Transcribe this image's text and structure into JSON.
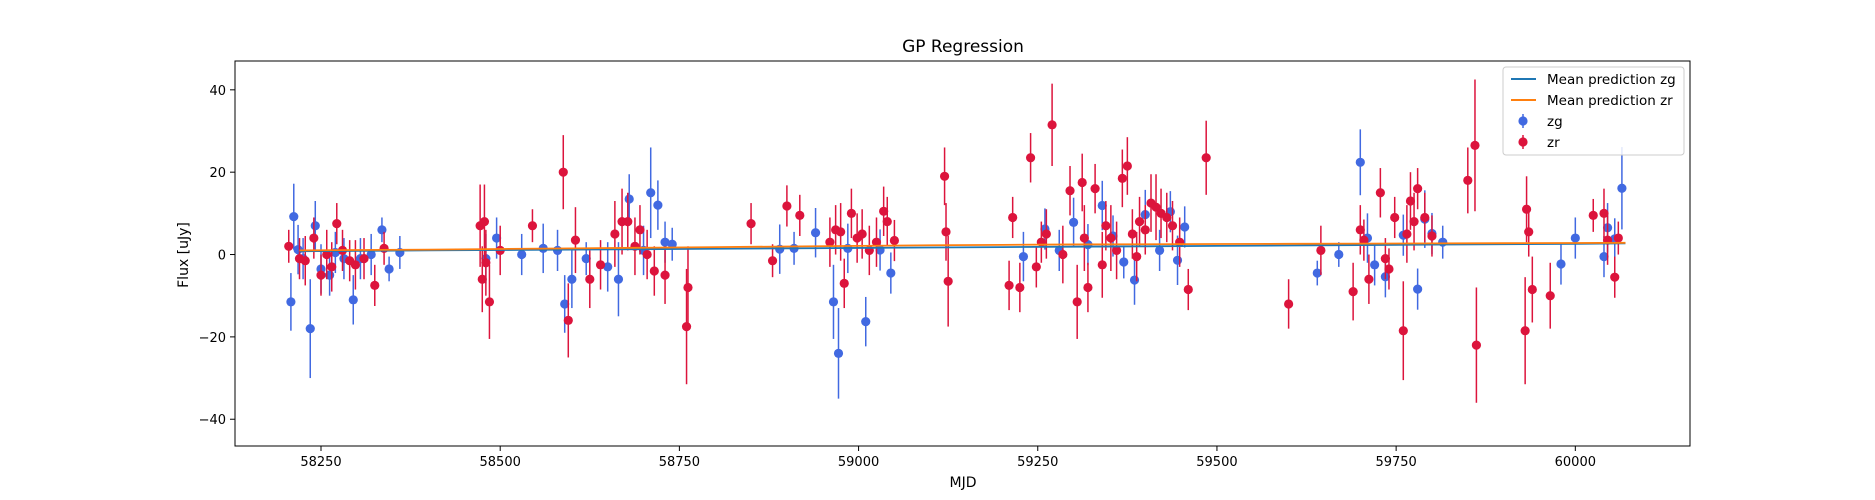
{
  "chart_data": {
    "type": "scatter",
    "title": "GP Regression",
    "xlabel": "MJD",
    "ylabel": "Flux [uJy]",
    "xlim": [
      58130,
      60160
    ],
    "ylim": [
      -46.5,
      47
    ],
    "xticks": [
      58250,
      58500,
      58750,
      59000,
      59250,
      59500,
      59750,
      60000
    ],
    "yticks": [
      -40,
      -20,
      0,
      20,
      40
    ],
    "grid": false,
    "legend_position": "top-right",
    "series": [
      {
        "name": "Mean prediction zg",
        "kind": "line",
        "color": "#1f77b4",
        "x": [
          58220,
          58300,
          58400,
          58500,
          58600,
          58700,
          58800,
          58900,
          59000,
          59100,
          59200,
          59300,
          59400,
          59500,
          59600,
          59700,
          59800,
          59900,
          60000,
          60070
        ],
        "y": [
          0.8,
          0.9,
          1.0,
          1.1,
          1.2,
          1.3,
          1.4,
          1.5,
          1.6,
          1.7,
          1.8,
          1.9,
          2.0,
          2.1,
          2.2,
          2.3,
          2.4,
          2.5,
          2.6,
          2.7
        ]
      },
      {
        "name": "Mean prediction zr",
        "kind": "line",
        "color": "#ff7f0e",
        "x": [
          58220,
          58300,
          58400,
          58500,
          58600,
          58700,
          58800,
          58900,
          59000,
          59100,
          59200,
          59300,
          59400,
          59500,
          59600,
          59700,
          59800,
          59900,
          60000,
          60070
        ],
        "y": [
          1.0,
          1.1,
          1.2,
          1.35,
          1.5,
          1.65,
          1.8,
          1.95,
          2.1,
          2.25,
          2.35,
          2.45,
          2.5,
          2.55,
          2.6,
          2.65,
          2.7,
          2.75,
          2.8,
          2.85
        ]
      },
      {
        "name": "zg",
        "kind": "errorbar",
        "color": "#4169e1",
        "x": [
          58208,
          58212,
          58218,
          58225,
          58235,
          58242,
          58250,
          58262,
          58270,
          58282,
          58295,
          58305,
          58320,
          58335,
          58345,
          58360,
          58480,
          58495,
          58530,
          58560,
          58580,
          58590,
          58600,
          58620,
          58650,
          58665,
          58680,
          58700,
          58710,
          58720,
          58730,
          58740,
          58890,
          58910,
          58940,
          58965,
          58972,
          58985,
          59010,
          59030,
          59045,
          59230,
          59260,
          59280,
          59300,
          59320,
          59340,
          59355,
          59370,
          59385,
          59400,
          59420,
          59435,
          59445,
          59455,
          59640,
          59670,
          59700,
          59710,
          59720,
          59735,
          59760,
          59780,
          59790,
          59800,
          59815,
          59980,
          60000,
          60040,
          60045,
          60055,
          60065
        ],
        "y": [
          -11.5,
          9.2,
          1.2,
          -1,
          -18,
          7,
          -3.5,
          -5,
          0.5,
          -1,
          -11,
          -1,
          0,
          6,
          -3.5,
          0.5,
          -1,
          4,
          0,
          1.5,
          1,
          -12,
          -6,
          -1,
          -3,
          -6,
          13.5,
          1,
          15,
          12,
          3,
          2.5,
          1.3,
          1.5,
          5.3,
          -11.5,
          -24,
          1.5,
          -16.3,
          1.1,
          -4.5,
          -0.5,
          6.2,
          1,
          7.8,
          2.4,
          11.9,
          4.5,
          -1.8,
          -6.2,
          9.7,
          1,
          10.4,
          -1.4,
          6.7,
          -4.5,
          0,
          22.4,
          4,
          -2.5,
          -5.4,
          4.7,
          -8.4,
          8.6,
          5.1,
          3,
          -2.3,
          4,
          -0.5,
          6.5,
          3.8,
          16.1
        ],
        "yerr": [
          7,
          8,
          6,
          5,
          12,
          6,
          6,
          5,
          5,
          5,
          6,
          5,
          5,
          3,
          3,
          4,
          6,
          5,
          5,
          6,
          5,
          7,
          7,
          4,
          6,
          9,
          6,
          6,
          11,
          6,
          5,
          4,
          6,
          4,
          6,
          9,
          11,
          6,
          6,
          5,
          5,
          6,
          5,
          5,
          6,
          5,
          6,
          5,
          4,
          6,
          6,
          5,
          5,
          6,
          5,
          3,
          3,
          8,
          6,
          5,
          5,
          5,
          5,
          7,
          5,
          4,
          5,
          5,
          5,
          6,
          5,
          10
        ]
      },
      {
        "name": "zr",
        "kind": "errorbar",
        "color": "#dc143c",
        "x": [
          58205,
          58220,
          58228,
          58240,
          58250,
          58258,
          58265,
          58272,
          58280,
          58290,
          58298,
          58310,
          58325,
          58338,
          58472,
          58475,
          58478,
          58480,
          58485,
          58500,
          58545,
          58588,
          58595,
          58605,
          58625,
          58640,
          58660,
          58670,
          58678,
          58688,
          58695,
          58705,
          58715,
          58730,
          58760,
          58762,
          58850,
          58880,
          58900,
          58918,
          58960,
          58968,
          58975,
          58980,
          58990,
          58998,
          59005,
          59015,
          59025,
          59035,
          59040,
          59050,
          59120,
          59122,
          59125,
          59210,
          59215,
          59225,
          59240,
          59248,
          59255,
          59262,
          59270,
          59285,
          59295,
          59305,
          59312,
          59315,
          59320,
          59330,
          59340,
          59345,
          59352,
          59360,
          59368,
          59375,
          59382,
          59388,
          59392,
          59400,
          59408,
          59415,
          59422,
          59430,
          59438,
          59448,
          59460,
          59485,
          59600,
          59645,
          59690,
          59700,
          59705,
          59712,
          59728,
          59735,
          59740,
          59748,
          59760,
          59765,
          59770,
          59775,
          59780,
          59790,
          59800,
          59850,
          59860,
          59862,
          59930,
          59932,
          59935,
          59940,
          59965,
          60025,
          60040,
          60045,
          60055,
          60060
        ],
        "y": [
          2,
          -1,
          -1.5,
          4,
          -5,
          0,
          -3,
          7.5,
          1,
          -1.5,
          -2.5,
          -1,
          -7.5,
          1.5,
          7,
          -6,
          8,
          -2,
          -11.5,
          1,
          7,
          20,
          -16,
          3.5,
          -6,
          -2.5,
          5,
          8,
          8,
          2,
          6,
          0,
          -4,
          -5,
          -17.5,
          -8,
          7.5,
          -1.5,
          11.8,
          9.5,
          3,
          6,
          5.5,
          -7,
          10,
          4,
          5,
          1,
          3,
          10.5,
          8,
          3.4,
          19,
          5.5,
          -6.5,
          -7.5,
          9,
          -8,
          23.5,
          -3,
          3,
          5,
          31.5,
          0,
          15.5,
          -11.5,
          17.5,
          4,
          -8,
          16,
          -2.5,
          7,
          4,
          1,
          18.5,
          21.5,
          5,
          -0.5,
          8,
          6,
          12.5,
          11.5,
          10,
          9,
          7,
          3,
          -8.5,
          23.5,
          -12,
          1,
          -9,
          6,
          3.5,
          -6,
          15,
          -1,
          -3.5,
          9,
          -18.5,
          5,
          13,
          8,
          16,
          9,
          4.5,
          18,
          26.5,
          -22,
          -18.5,
          11,
          5.5,
          -8.5,
          -10,
          9.5,
          10,
          3.5,
          -5.5,
          4
        ],
        "yerr": [
          4,
          5,
          6,
          5,
          5,
          6,
          6,
          5,
          5,
          5,
          6,
          5,
          5,
          4,
          10,
          8,
          9,
          8,
          9,
          6,
          4,
          9,
          9,
          8,
          7,
          6,
          8,
          8,
          7,
          7,
          6,
          6,
          6,
          7,
          14,
          10,
          5,
          4,
          5,
          5,
          6,
          6,
          7,
          6,
          6,
          6,
          6,
          6,
          6,
          6,
          6,
          5,
          7,
          7,
          11,
          6,
          5,
          6,
          6,
          5,
          5,
          6,
          10,
          7,
          6,
          9,
          7,
          8,
          6,
          6,
          8,
          6,
          8,
          7,
          7,
          7,
          6,
          6,
          6,
          6,
          7,
          8,
          6,
          6,
          6,
          6,
          5,
          9,
          6,
          6,
          7,
          6,
          5,
          6,
          6,
          5,
          5,
          5,
          12,
          7,
          7,
          7,
          5,
          6,
          5,
          8,
          16,
          14,
          13,
          8,
          6,
          8,
          8,
          4,
          6,
          6,
          5,
          4
        ]
      }
    ]
  }
}
